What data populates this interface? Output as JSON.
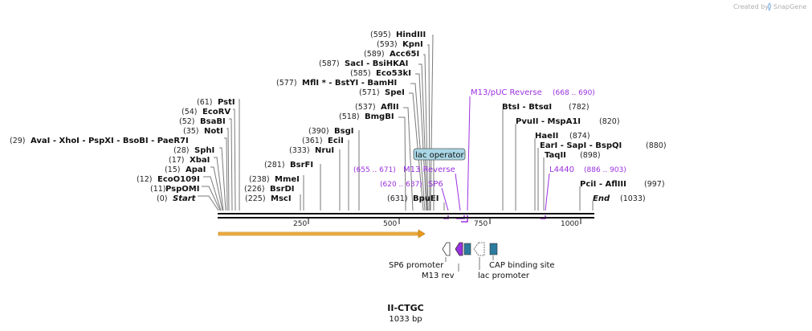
{
  "credit": {
    "text": "Created by",
    "brand": "SnapGene"
  },
  "sequence": {
    "name": "II-CTGC",
    "length_label": "1033 bp",
    "length": 1033
  },
  "axis_ticks": [
    "250",
    "500",
    "750",
    "1000"
  ],
  "enzymes": [
    {
      "pos": "(0)",
      "name": "Start",
      "bp": 0,
      "italic": true
    },
    {
      "pos": "(11)",
      "name": "PspOMI",
      "bp": 11
    },
    {
      "pos": "(12)",
      "name": "EcoO109I",
      "bp": 12
    },
    {
      "pos": "(15)",
      "name": "ApaI",
      "bp": 15
    },
    {
      "pos": "(17)",
      "name": "XbaI",
      "bp": 17
    },
    {
      "pos": "(28)",
      "name": "SphI",
      "bp": 28
    },
    {
      "pos": "(29)",
      "name": "AvaI   - XhoI   - PspXI   - BsoBI   - PaeR7I",
      "bp": 29
    },
    {
      "pos": "(35)",
      "name": "NotI",
      "bp": 35
    },
    {
      "pos": "(52)",
      "name": "BsaBI",
      "bp": 52
    },
    {
      "pos": "(54)",
      "name": "EcoRV",
      "bp": 54
    },
    {
      "pos": "(61)",
      "name": "PstI",
      "bp": 61
    },
    {
      "pos": "(225)",
      "name": "MscI",
      "bp": 225
    },
    {
      "pos": "(226)",
      "name": "BsrDI",
      "bp": 226
    },
    {
      "pos": "(238)",
      "name": "MmeI",
      "bp": 238
    },
    {
      "pos": "(281)",
      "name": "BsrFI",
      "bp": 281
    },
    {
      "pos": "(333)",
      "name": "NruI",
      "bp": 333
    },
    {
      "pos": "(361)",
      "name": "EciI",
      "bp": 361
    },
    {
      "pos": "(390)",
      "name": "BsgI",
      "bp": 390
    },
    {
      "pos": "(518)",
      "name": "BmgBI",
      "bp": 518
    },
    {
      "pos": "(537)",
      "name": "AflII",
      "bp": 537
    },
    {
      "pos": "(571)",
      "name": "SpeI",
      "bp": 571
    },
    {
      "pos": "(577)",
      "name": "MflI *  - BstYI   - BamHI",
      "bp": 577
    },
    {
      "pos": "(585)",
      "name": "Eco53kI",
      "bp": 585
    },
    {
      "pos": "(587)",
      "name": "SacI   - BsiHKAI",
      "bp": 587
    },
    {
      "pos": "(589)",
      "name": "Acc65I",
      "bp": 589
    },
    {
      "pos": "(593)",
      "name": "KpnI",
      "bp": 593
    },
    {
      "pos": "(595)",
      "name": "HindIII",
      "bp": 595
    },
    {
      "pos": "(631)",
      "name": "BpuEI",
      "bp": 631
    },
    {
      "pos": "(782)",
      "name": "BtsI   - BtsαI",
      "bp": 782
    },
    {
      "pos": "(820)",
      "name": "PvuII   - MspA1I",
      "bp": 820
    },
    {
      "pos": "(874)",
      "name": "HaeII",
      "bp": 874
    },
    {
      "pos": "(880)",
      "name": "EarI   - SapI   - BspQI",
      "bp": 880
    },
    {
      "pos": "(898)",
      "name": "TaqII",
      "bp": 898
    },
    {
      "pos": "(997)",
      "name": "PciI   - AflIII",
      "bp": 997
    },
    {
      "pos": "(1033)",
      "name": "End",
      "bp": 1033,
      "italic": true
    }
  ],
  "primers": [
    {
      "name": "M13/pUC Reverse",
      "range": "(668 .. 690)",
      "start": 668,
      "end": 690
    },
    {
      "name": "M13 Reverse",
      "range": "(655 .. 671)",
      "start": 655,
      "end": 671
    },
    {
      "name": "SP6",
      "range": "(620 .. 637)",
      "start": 620,
      "end": 637
    },
    {
      "name": "L4440",
      "range": "(886 .. 903)",
      "start": 886,
      "end": 903
    }
  ],
  "features": {
    "lac_operator": "lac operator",
    "sp6_promoter": "SP6 promoter",
    "m13_rev": "M13 rev",
    "lac_promoter": "lac promoter",
    "cap_binding_site": "CAP binding site"
  },
  "colors": {
    "orf_arrow": "#f0a830",
    "primer": "#9b30e0",
    "cap_site": "#2b7b9e",
    "lac_operator": "#a9d6e5"
  }
}
